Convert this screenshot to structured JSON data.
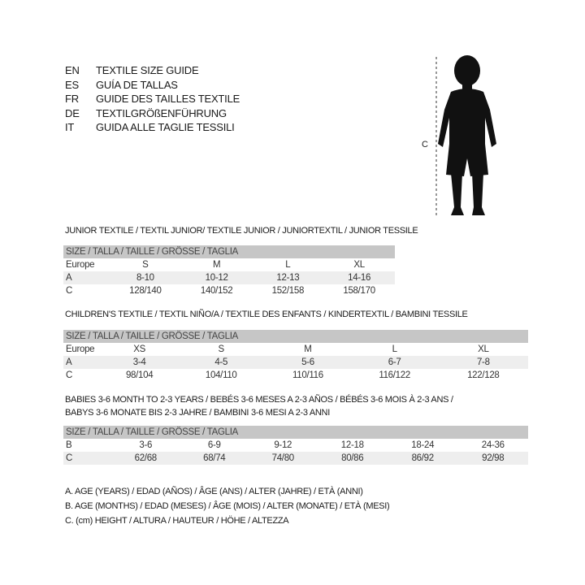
{
  "title_langs": [
    {
      "code": "EN",
      "text": "TEXTILE SIZE GUIDE"
    },
    {
      "code": "ES",
      "text": "GUÍA DE TALLAS"
    },
    {
      "code": "FR",
      "text": "GUIDE DES TAILLES TEXTILE"
    },
    {
      "code": "DE",
      "text": "TEXTILGRÖßENFÜHRUNG"
    },
    {
      "code": "IT",
      "text": "GUIDA ALLE TAGLIE TESSILI"
    }
  ],
  "figure": {
    "label": "C",
    "icon": "child-silhouette"
  },
  "size_header": "SIZE / TALLA / TAILLE / GRÖSSE / TAGLIA",
  "junior": {
    "title": "JUNIOR TEXTILE / TEXTIL JUNIOR/ TEXTILE JUNIOR / JUNIORTEXTIL / JUNIOR TESSILE",
    "rows": [
      {
        "label": "Europe",
        "values": [
          "S",
          "M",
          "L",
          "XL"
        ]
      },
      {
        "label": "A",
        "values": [
          "8-10",
          "10-12",
          "12-13",
          "14-16"
        ]
      },
      {
        "label": "C",
        "values": [
          "128/140",
          "140/152",
          "152/158",
          "158/170"
        ]
      }
    ]
  },
  "children": {
    "title": "CHILDREN'S TEXTILE / TEXTIL NIÑO/A / TEXTILE DES ENFANTS / KINDERTEXTIL / BAMBINI TESSILE",
    "rows": [
      {
        "label": "Europe",
        "values": [
          "XS",
          "S",
          "M",
          "L",
          "XL"
        ]
      },
      {
        "label": "A",
        "values": [
          "3-4",
          "4-5",
          "5-6",
          "6-7",
          "7-8"
        ]
      },
      {
        "label": "C",
        "values": [
          "98/104",
          "104/110",
          "110/116",
          "116/122",
          "122/128"
        ]
      }
    ]
  },
  "babies": {
    "title1": "BABIES 3-6 MONTH TO 2-3 YEARS / BEBÉS 3-6 MESES A 2-3 AÑOS / BÉBÉS 3-6 MOIS À 2-3 ANS /",
    "title2": "BABYS 3-6 MONATE BIS 2-3 JAHRE / BAMBINI 3-6 MESI A 2-3 ANNI",
    "rows": [
      {
        "label": "B",
        "values": [
          "3-6",
          "6-9",
          "9-12",
          "12-18",
          "18-24",
          "24-36"
        ]
      },
      {
        "label": "C",
        "values": [
          "62/68",
          "68/74",
          "74/80",
          "80/86",
          "86/92",
          "92/98"
        ]
      }
    ]
  },
  "legend": [
    "A. AGE (YEARS) / EDAD (AÑOS) / ÂGE (ANS) / ALTER (JAHRE) / ETÀ (ANNI)",
    "B. AGE (MONTHS) / EDAD (MESES) / ÂGE (MOIS) / ALTER (MONATE) / ETÀ (MESI)",
    "C. (cm) HEIGHT / ALTURA / HAUTEUR / HÖHE / ALTEZZA"
  ]
}
